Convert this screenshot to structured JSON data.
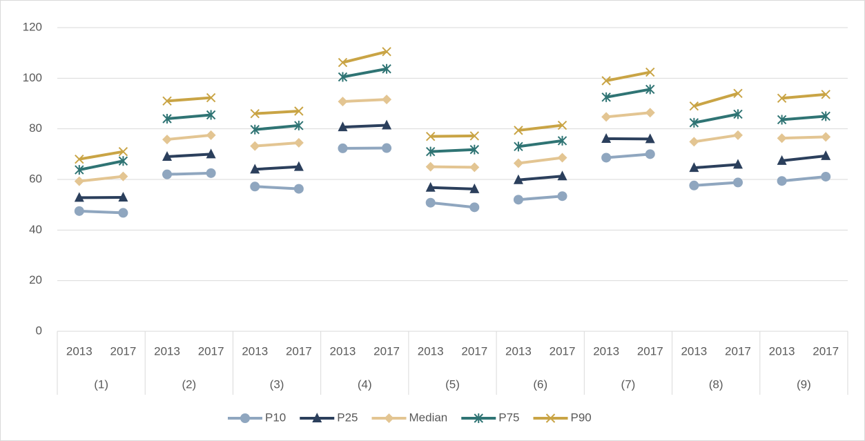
{
  "chart_data": {
    "type": "line",
    "categories": [
      "2013",
      "2017",
      "2013",
      "2017",
      "2013",
      "2017",
      "2013",
      "2017",
      "2013",
      "2017",
      "2013",
      "2017",
      "2013",
      "2017",
      "2013",
      "2017",
      "2013",
      "2017"
    ],
    "groups": [
      "(1)",
      "(2)",
      "(3)",
      "(4)",
      "(5)",
      "(6)",
      "(7)",
      "(8)",
      "(9)"
    ],
    "ylim": [
      0,
      120
    ],
    "yticks": [
      0,
      20,
      40,
      60,
      80,
      100,
      120
    ],
    "grid": true,
    "legend": "bottom",
    "series": [
      {
        "name": "P10",
        "color": "#8fa6bf",
        "marker": "circle",
        "values": [
          47.5,
          46.8,
          62,
          62.5,
          57.2,
          56.3,
          72.3,
          72.4,
          50.8,
          49,
          52,
          53.4,
          68.6,
          70,
          57.6,
          58.8,
          59.4,
          61.1
        ]
      },
      {
        "name": "P25",
        "color": "#2b3f5c",
        "marker": "triangle",
        "values": [
          52.8,
          52.9,
          69,
          70,
          64,
          65,
          80.7,
          81.4,
          56.8,
          56.2,
          59.8,
          61.3,
          76.1,
          76,
          64.6,
          65.9,
          67.4,
          69.3
        ]
      },
      {
        "name": "Median",
        "color": "#e3c592",
        "marker": "diamond",
        "values": [
          59.3,
          61.2,
          75.8,
          77.5,
          73.2,
          74.5,
          90.8,
          91.6,
          65,
          64.8,
          66.4,
          68.6,
          84.7,
          86.4,
          74.9,
          77.5,
          76.3,
          76.8
        ]
      },
      {
        "name": "P75",
        "color": "#2f7474",
        "marker": "asterisk",
        "values": [
          63.8,
          67.3,
          84,
          85.5,
          79.7,
          81.3,
          100.5,
          103.7,
          71,
          71.8,
          73,
          75.3,
          92.5,
          95.6,
          82.4,
          85.8,
          83.6,
          85
        ]
      },
      {
        "name": "P90",
        "color": "#c9a445",
        "marker": "x",
        "values": [
          68,
          71,
          91,
          92.3,
          86,
          87,
          106.2,
          110.5,
          77,
          77.2,
          79.4,
          81.4,
          99,
          102.4,
          89,
          94,
          92.1,
          93.6
        ]
      }
    ]
  }
}
